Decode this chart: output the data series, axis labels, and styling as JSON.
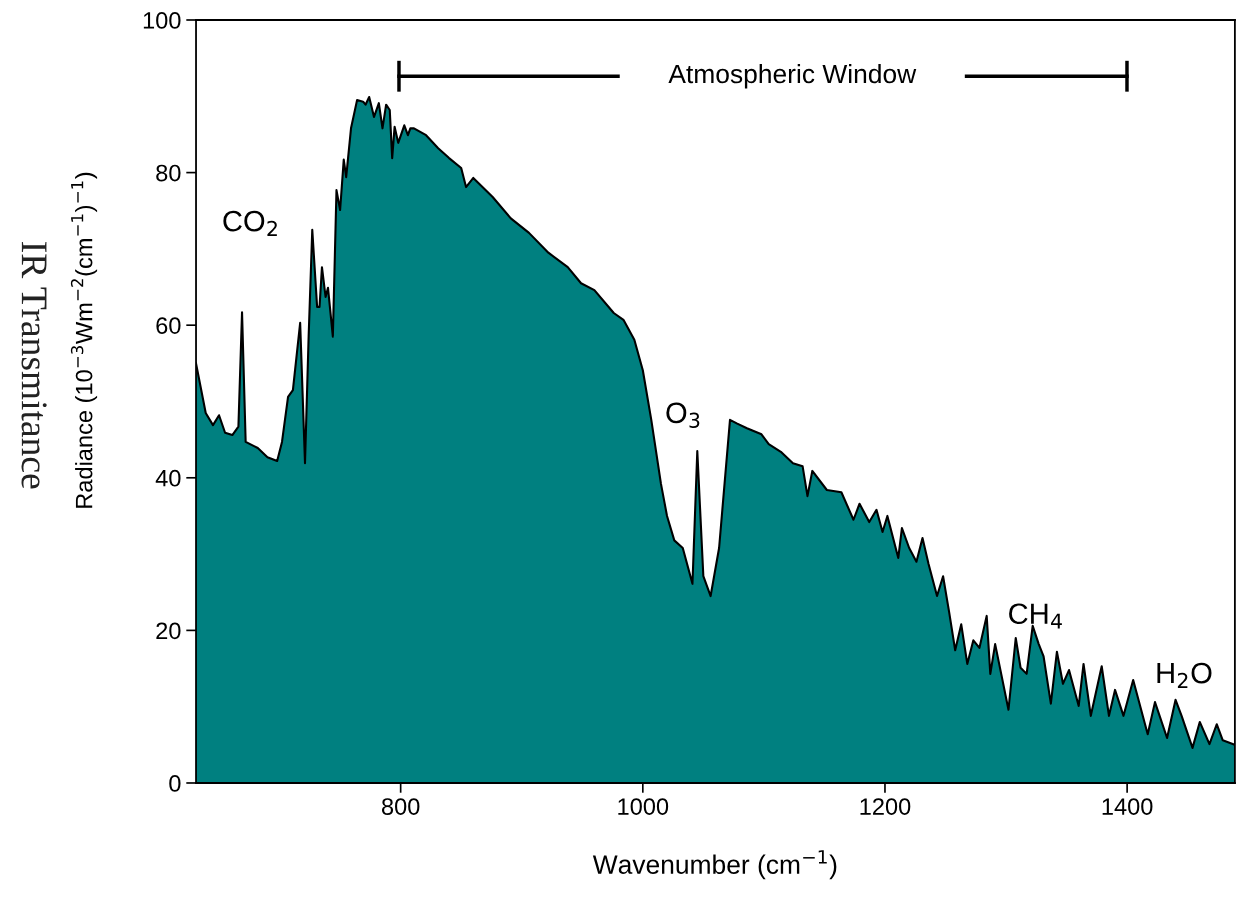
{
  "chart_data": {
    "type": "area",
    "xlabel": "Wavenumber (cm$^{−1}$)",
    "ylabel": "Radiance (10$^{−3}$Wm$^{−2}$(cm$^{−1}$)$^{−1}$)",
    "xlim": [
      631,
      1489
    ],
    "ylim": [
      0,
      100
    ],
    "xticks": [
      800,
      1000,
      1200,
      1400
    ],
    "yticks": [
      0,
      20,
      40,
      60,
      80,
      100
    ],
    "grid": false,
    "series": [
      {
        "color": "#008080",
        "x": [
          631,
          639,
          645,
          650,
          655,
          661,
          666,
          669,
          672,
          682,
          690,
          698,
          702,
          707,
          711,
          717,
          721,
          724,
          727,
          731,
          733,
          735,
          738,
          740,
          744,
          747,
          750,
          753,
          755,
          759,
          764,
          769,
          771,
          774,
          778,
          782,
          785,
          788,
          791,
          793,
          795,
          798,
          803,
          806,
          808,
          811,
          821,
          831,
          840,
          850,
          854,
          860,
          876,
          891,
          906,
          922,
          938,
          949,
          960,
          976,
          984,
          993,
          1000,
          1007,
          1015,
          1020,
          1026,
          1033,
          1041,
          1045,
          1050,
          1056,
          1063,
          1072,
          1078,
          1086,
          1098,
          1104,
          1114,
          1124,
          1132,
          1136,
          1140,
          1152,
          1164,
          1174,
          1179,
          1187,
          1193,
          1198,
          1202,
          1211,
          1214,
          1220,
          1226,
          1231,
          1236,
          1243,
          1248,
          1253,
          1258,
          1263,
          1268,
          1273,
          1278,
          1284,
          1287,
          1291,
          1296,
          1302,
          1308,
          1312,
          1317,
          1322,
          1327,
          1331,
          1337,
          1342,
          1347,
          1352,
          1360,
          1364,
          1370,
          1379,
          1385,
          1390,
          1397,
          1405,
          1417,
          1423,
          1433,
          1440,
          1445,
          1454,
          1460,
          1468,
          1474,
          1479,
          1489
        ],
        "values": [
          55.0,
          48.5,
          46.9,
          48.2,
          45.9,
          45.6,
          46.7,
          61.7,
          44.7,
          43.9,
          42.7,
          42.2,
          44.7,
          50.6,
          51.5,
          60.3,
          41.9,
          58.5,
          72.5,
          62.4,
          62.4,
          67.6,
          63.7,
          64.9,
          58.5,
          77.7,
          75.1,
          81.7,
          79.4,
          85.8,
          89.5,
          89.3,
          88.9,
          89.9,
          87.3,
          89.1,
          85.8,
          88.9,
          88.2,
          81.9,
          86.0,
          83.9,
          86.2,
          84.9,
          85.8,
          85.8,
          84.9,
          83.2,
          81.9,
          80.6,
          78.1,
          79.3,
          76.8,
          74.0,
          72.1,
          69.5,
          67.6,
          65.5,
          64.6,
          61.6,
          60.7,
          58.1,
          54.1,
          47.6,
          39.2,
          35.0,
          31.8,
          30.8,
          26.1,
          43.5,
          27.1,
          24.5,
          30.8,
          47.6,
          47.1,
          46.5,
          45.7,
          44.4,
          43.4,
          41.9,
          41.5,
          37.6,
          40.9,
          38.4,
          38.1,
          34.5,
          36.6,
          34.2,
          35.8,
          32.9,
          35.0,
          29.5,
          33.4,
          30.8,
          29.0,
          32.1,
          28.7,
          24.5,
          27.1,
          22.4,
          17.4,
          20.8,
          15.6,
          18.7,
          17.7,
          21.9,
          14.3,
          18.2,
          14.3,
          9.6,
          19.0,
          15.1,
          14.3,
          20.6,
          18.2,
          16.6,
          10.4,
          17.2,
          13.0,
          14.8,
          10.1,
          15.6,
          8.8,
          15.3,
          8.8,
          12.2,
          8.8,
          13.5,
          6.4,
          10.6,
          5.9,
          10.9,
          8.8,
          4.6,
          8.0,
          5.1,
          7.7,
          5.6,
          5.0
        ]
      }
    ],
    "annotations": [
      "IR Transmitance",
      "Atmospheric Window",
      "CO$_{2}$",
      "O$_{3}$",
      "CH$_{4}$",
      "H$_{2}$O"
    ]
  }
}
